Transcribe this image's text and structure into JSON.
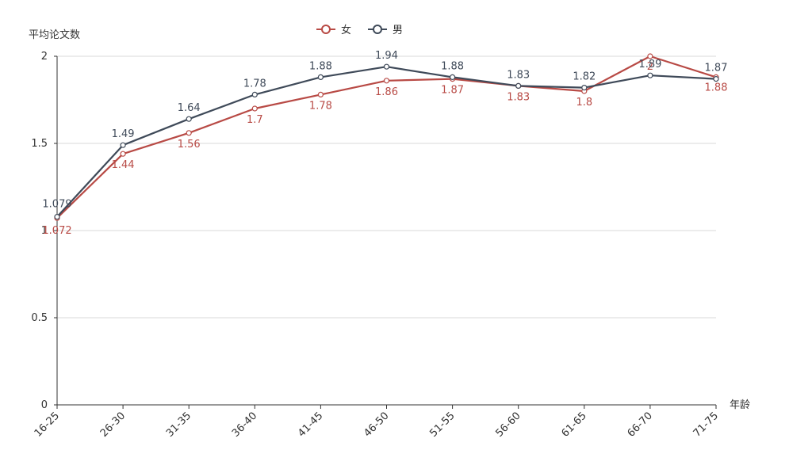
{
  "chart_data": {
    "type": "line",
    "xlabel": "年龄",
    "ylabel": "平均论文数",
    "categories": [
      "16-25",
      "26-30",
      "31-35",
      "36-40",
      "41-45",
      "46-50",
      "51-55",
      "56-60",
      "61-65",
      "66-70",
      "71-75"
    ],
    "ylim": [
      0,
      2
    ],
    "yticks": [
      "0",
      "0.5",
      "1",
      "1.5",
      "2"
    ],
    "grid": true,
    "legend_position": "top-center",
    "series": [
      {
        "name": "女",
        "color": "#b84a45",
        "values": [
          1.072,
          1.44,
          1.56,
          1.7,
          1.78,
          1.86,
          1.87,
          1.83,
          1.8,
          2.0,
          1.88
        ],
        "labels": [
          "1.072",
          "1.44",
          "1.56",
          "1.7",
          "1.78",
          "1.86",
          "1.87",
          "1.83",
          "1.8",
          "2",
          "1.88"
        ]
      },
      {
        "name": "男",
        "color": "#3f4a59",
        "values": [
          1.079,
          1.49,
          1.64,
          1.78,
          1.88,
          1.94,
          1.88,
          1.83,
          1.82,
          1.89,
          1.87
        ],
        "labels": [
          "1.079",
          "1.49",
          "1.64",
          "1.78",
          "1.88",
          "1.94",
          "1.88",
          "1.83",
          "1.82",
          "1.89",
          "1.87"
        ]
      }
    ]
  }
}
